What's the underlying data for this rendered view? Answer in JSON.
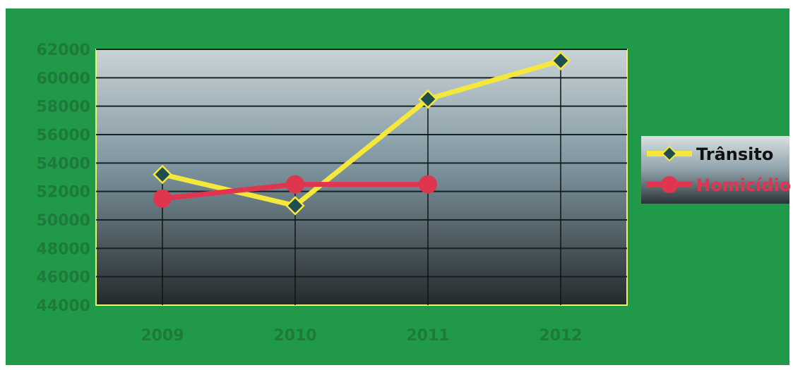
{
  "chart_data": {
    "type": "line",
    "categories": [
      "2009",
      "2010",
      "2011",
      "2012"
    ],
    "ylim": [
      44000,
      62000
    ],
    "yticks": [
      44000,
      46000,
      48000,
      50000,
      52000,
      54000,
      56000,
      58000,
      60000,
      62000
    ],
    "grid": true,
    "legend_position": "right",
    "series": [
      {
        "name": "Trânsito",
        "values": [
          53200,
          51000,
          58500,
          61200
        ],
        "color": "#f5e83c",
        "marker": "diamond",
        "marker_color": "#1f4e4f"
      },
      {
        "name": "Homicídio",
        "values": [
          51500,
          52500,
          52500,
          null
        ],
        "color": "#e0354e",
        "marker": "circle",
        "marker_color": "#e0354e"
      }
    ],
    "colors": {
      "frame_background": "#209a48",
      "plot_gradient_top": "#c9d3d6",
      "plot_gradient_mid": "#7f96a0",
      "plot_gradient_bottom": "#242a2c",
      "plot_border": "#f5ef6a",
      "tick_label": "#1e7a3a",
      "legend_background": "#2c3538",
      "legend_text": "#111111"
    }
  }
}
